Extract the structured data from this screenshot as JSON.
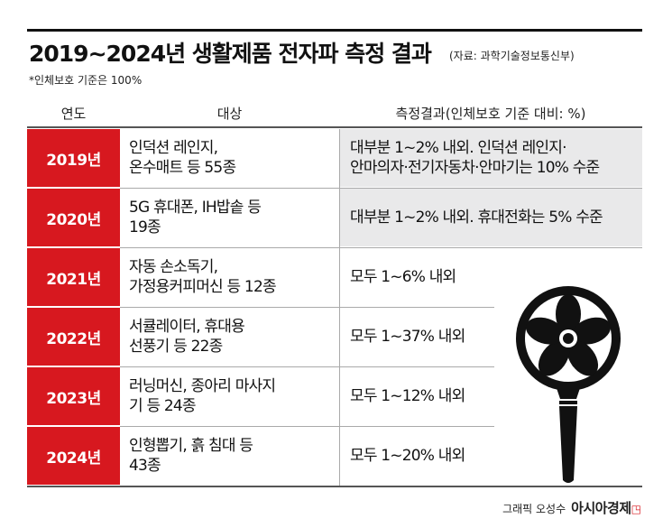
{
  "title": "2019~2024년 생활제품 전자파 측정 결과",
  "source": "(자료: 과학기술정보통신부)",
  "note": "*인체보호 기준은 100%",
  "table": {
    "headers": [
      "연도",
      "대상",
      "측정결과(인체보호 기준 대비: %)"
    ],
    "rows": [
      {
        "year": "2019년",
        "target": "인덕션 레인지,\n온수매트 등 55종",
        "result": "대부분 1~2% 내외. 인덕션 레인지·\n안마의자·전기자동차·안마기는 10% 수준"
      },
      {
        "year": "2020년",
        "target": "5G 휴대폰, IH밥솥 등\n19종",
        "result": "대부분 1~2% 내외. 휴대전화는 5% 수준"
      },
      {
        "year": "2021년",
        "target": "자동 손소독기,\n가정용커피머신 등 12종",
        "result": "모두 1~6% 내외"
      },
      {
        "year": "2022년",
        "target": "서큘레이터, 휴대용\n선풍기 등 22종",
        "result": "모두 1~37% 내외"
      },
      {
        "year": "2023년",
        "target": "러닝머신, 종아리 마사지\n기 등 24종",
        "result": "모두 1~12% 내외"
      },
      {
        "year": "2024년",
        "target": "인형뽑기, 흙 침대 등\n43종",
        "result": "모두 1~20% 내외"
      }
    ]
  },
  "credit": {
    "author": "그래픽 오성수",
    "brand": "아시아경제"
  },
  "colors": {
    "accent": "#d7181f",
    "shade": "#e9e9ea"
  },
  "icons": {
    "illustration": "handheld-fan-icon"
  }
}
